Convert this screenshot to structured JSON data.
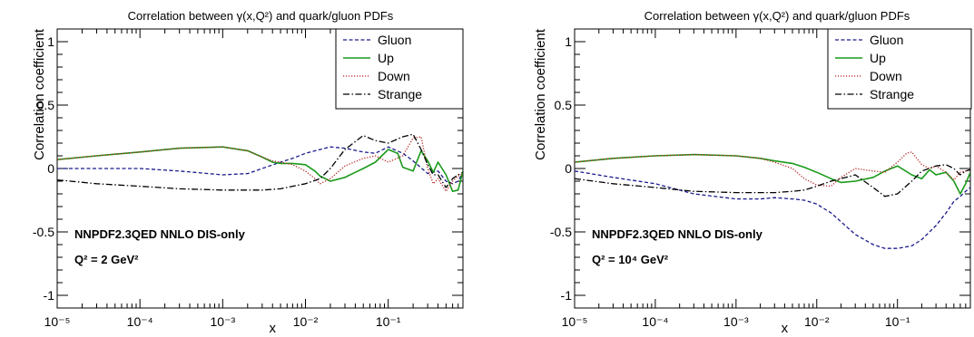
{
  "chart_data": [
    {
      "type": "line",
      "title": "Correlation between γ(x,Q²) and quark/gluon PDFs",
      "xlabel": "x",
      "ylabel": "Correlation coefficient",
      "x_scale": "log",
      "xlim": [
        1e-05,
        0.8
      ],
      "ylim": [
        -1.1,
        1.1
      ],
      "x_tick_labels": [
        "10⁻⁵",
        "10⁻⁴",
        "10⁻³",
        "10⁻²",
        "10⁻¹"
      ],
      "y_tick_labels": [
        "-1",
        "-0.5",
        "0",
        "0.5",
        "1"
      ],
      "legend_position": "top-right",
      "annotation_line1": "NNPDF2.3QED NNLO DIS-only",
      "annotation_line2": "Q² = 2 GeV²",
      "series": [
        {
          "name": "Gluon",
          "color": "#1a1a8c",
          "dash": "dashed",
          "x": [
            1e-05,
            3e-05,
            0.0001,
            0.0003,
            0.001,
            0.002,
            0.003,
            0.005,
            0.007,
            0.01,
            0.015,
            0.02,
            0.03,
            0.05,
            0.07,
            0.1,
            0.15,
            0.2,
            0.3,
            0.4,
            0.5,
            0.6,
            0.7,
            0.8
          ],
          "y": [
            0.0,
            0.0,
            0.0,
            -0.02,
            -0.05,
            -0.04,
            0.0,
            0.05,
            0.08,
            0.12,
            0.15,
            0.17,
            0.16,
            0.13,
            0.12,
            0.17,
            0.12,
            0.06,
            -0.04,
            -0.02,
            -0.1,
            -0.12,
            -0.1,
            -0.03
          ]
        },
        {
          "name": "Up",
          "color": "#1a9a1a",
          "dash": "solid",
          "x": [
            1e-05,
            3e-05,
            0.0001,
            0.0003,
            0.001,
            0.002,
            0.003,
            0.004,
            0.005,
            0.007,
            0.01,
            0.013,
            0.015,
            0.02,
            0.03,
            0.04,
            0.05,
            0.07,
            0.1,
            0.13,
            0.15,
            0.2,
            0.25,
            0.3,
            0.35,
            0.4,
            0.5,
            0.6,
            0.7,
            0.8
          ],
          "y": [
            0.07,
            0.1,
            0.13,
            0.16,
            0.17,
            0.14,
            0.09,
            0.05,
            0.04,
            0.04,
            0.03,
            -0.02,
            -0.06,
            -0.1,
            -0.07,
            -0.03,
            0.0,
            0.05,
            0.15,
            0.12,
            0.01,
            -0.02,
            0.14,
            0.06,
            -0.03,
            0.05,
            -0.05,
            -0.18,
            -0.17,
            -0.02
          ]
        },
        {
          "name": "Down",
          "color": "#b22222",
          "dash": "dotted",
          "x": [
            1e-05,
            3e-05,
            0.0001,
            0.0003,
            0.001,
            0.002,
            0.003,
            0.004,
            0.005,
            0.007,
            0.01,
            0.013,
            0.015,
            0.02,
            0.03,
            0.05,
            0.07,
            0.1,
            0.15,
            0.2,
            0.25,
            0.3,
            0.35,
            0.4,
            0.5,
            0.6,
            0.7,
            0.8
          ],
          "y": [
            0.07,
            0.1,
            0.13,
            0.16,
            0.17,
            0.14,
            0.09,
            0.06,
            0.05,
            0.03,
            -0.02,
            -0.08,
            -0.12,
            -0.08,
            0.02,
            0.08,
            0.1,
            0.05,
            0.1,
            0.24,
            0.25,
            0.0,
            -0.12,
            -0.08,
            -0.18,
            -0.1,
            -0.06,
            -0.04
          ]
        },
        {
          "name": "Strange",
          "color": "#000000",
          "dash": "dashdot",
          "x": [
            1e-05,
            3e-05,
            0.0001,
            0.0003,
            0.001,
            0.003,
            0.005,
            0.007,
            0.01,
            0.015,
            0.02,
            0.03,
            0.05,
            0.07,
            0.1,
            0.15,
            0.2,
            0.25,
            0.3,
            0.35,
            0.4,
            0.5,
            0.6,
            0.7,
            0.8
          ],
          "y": [
            -0.09,
            -0.12,
            -0.14,
            -0.16,
            -0.17,
            -0.17,
            -0.16,
            -0.14,
            -0.12,
            -0.08,
            0.0,
            0.15,
            0.26,
            0.22,
            0.2,
            0.25,
            0.27,
            0.15,
            0.03,
            -0.05,
            -0.05,
            -0.15,
            -0.08,
            -0.05,
            -0.03
          ]
        }
      ]
    },
    {
      "type": "line",
      "title": "Correlation between γ(x,Q²) and quark/gluon PDFs",
      "xlabel": "x",
      "ylabel": "Correlation coefficient",
      "x_scale": "log",
      "xlim": [
        1e-05,
        0.8
      ],
      "ylim": [
        -1.1,
        1.1
      ],
      "x_tick_labels": [
        "10⁻⁵",
        "10⁻⁴",
        "10⁻³",
        "10⁻²",
        "10⁻¹"
      ],
      "y_tick_labels": [
        "-1",
        "-0.5",
        "0",
        "0.5",
        "1"
      ],
      "legend_position": "top-right",
      "annotation_line1": "NNPDF2.3QED NNLO DIS-only",
      "annotation_line2": "Q² = 10⁴ GeV²",
      "series": [
        {
          "name": "Gluon",
          "color": "#1a1a8c",
          "dash": "dashed",
          "x": [
            1e-05,
            3e-05,
            0.0001,
            0.0003,
            0.001,
            0.002,
            0.003,
            0.005,
            0.007,
            0.01,
            0.015,
            0.02,
            0.03,
            0.05,
            0.07,
            0.1,
            0.15,
            0.2,
            0.3,
            0.4,
            0.5,
            0.6,
            0.7,
            0.8
          ],
          "y": [
            -0.02,
            -0.07,
            -0.12,
            -0.2,
            -0.24,
            -0.24,
            -0.23,
            -0.24,
            -0.25,
            -0.28,
            -0.35,
            -0.42,
            -0.52,
            -0.6,
            -0.63,
            -0.63,
            -0.61,
            -0.56,
            -0.45,
            -0.35,
            -0.26,
            -0.22,
            -0.18,
            -0.15
          ]
        },
        {
          "name": "Up",
          "color": "#1a9a1a",
          "dash": "solid",
          "x": [
            1e-05,
            3e-05,
            0.0001,
            0.0003,
            0.001,
            0.002,
            0.003,
            0.005,
            0.007,
            0.01,
            0.015,
            0.02,
            0.03,
            0.05,
            0.07,
            0.1,
            0.15,
            0.2,
            0.25,
            0.3,
            0.4,
            0.5,
            0.6,
            0.7,
            0.8
          ],
          "y": [
            0.05,
            0.08,
            0.1,
            0.11,
            0.1,
            0.08,
            0.06,
            0.04,
            0.01,
            -0.03,
            -0.08,
            -0.11,
            -0.1,
            -0.07,
            -0.02,
            0.02,
            -0.05,
            -0.08,
            -0.01,
            -0.05,
            -0.03,
            -0.1,
            -0.2,
            -0.12,
            -0.03
          ]
        },
        {
          "name": "Down",
          "color": "#b22222",
          "dash": "dotted",
          "x": [
            1e-05,
            3e-05,
            0.0001,
            0.0003,
            0.001,
            0.002,
            0.003,
            0.005,
            0.007,
            0.01,
            0.015,
            0.02,
            0.03,
            0.05,
            0.07,
            0.1,
            0.13,
            0.15,
            0.2,
            0.25,
            0.3,
            0.4,
            0.5,
            0.6,
            0.7,
            0.8
          ],
          "y": [
            0.05,
            0.08,
            0.1,
            0.11,
            0.1,
            0.08,
            0.05,
            0.0,
            -0.08,
            -0.13,
            -0.14,
            -0.07,
            0.0,
            -0.02,
            -0.03,
            0.05,
            0.12,
            0.13,
            0.03,
            0.0,
            0.02,
            -0.03,
            -0.09,
            -0.03,
            -0.02,
            -0.01
          ]
        },
        {
          "name": "Strange",
          "color": "#000000",
          "dash": "dashdot",
          "x": [
            1e-05,
            3e-05,
            0.0001,
            0.0003,
            0.001,
            0.003,
            0.005,
            0.007,
            0.01,
            0.015,
            0.02,
            0.03,
            0.05,
            0.07,
            0.1,
            0.15,
            0.2,
            0.3,
            0.4,
            0.5,
            0.6,
            0.7,
            0.8
          ],
          "y": [
            -0.08,
            -0.12,
            -0.15,
            -0.18,
            -0.19,
            -0.19,
            -0.18,
            -0.17,
            -0.14,
            -0.1,
            -0.08,
            -0.05,
            -0.15,
            -0.22,
            -0.2,
            -0.1,
            -0.02,
            0.02,
            0.03,
            0.0,
            -0.05,
            -0.02,
            -0.01
          ]
        }
      ]
    }
  ]
}
